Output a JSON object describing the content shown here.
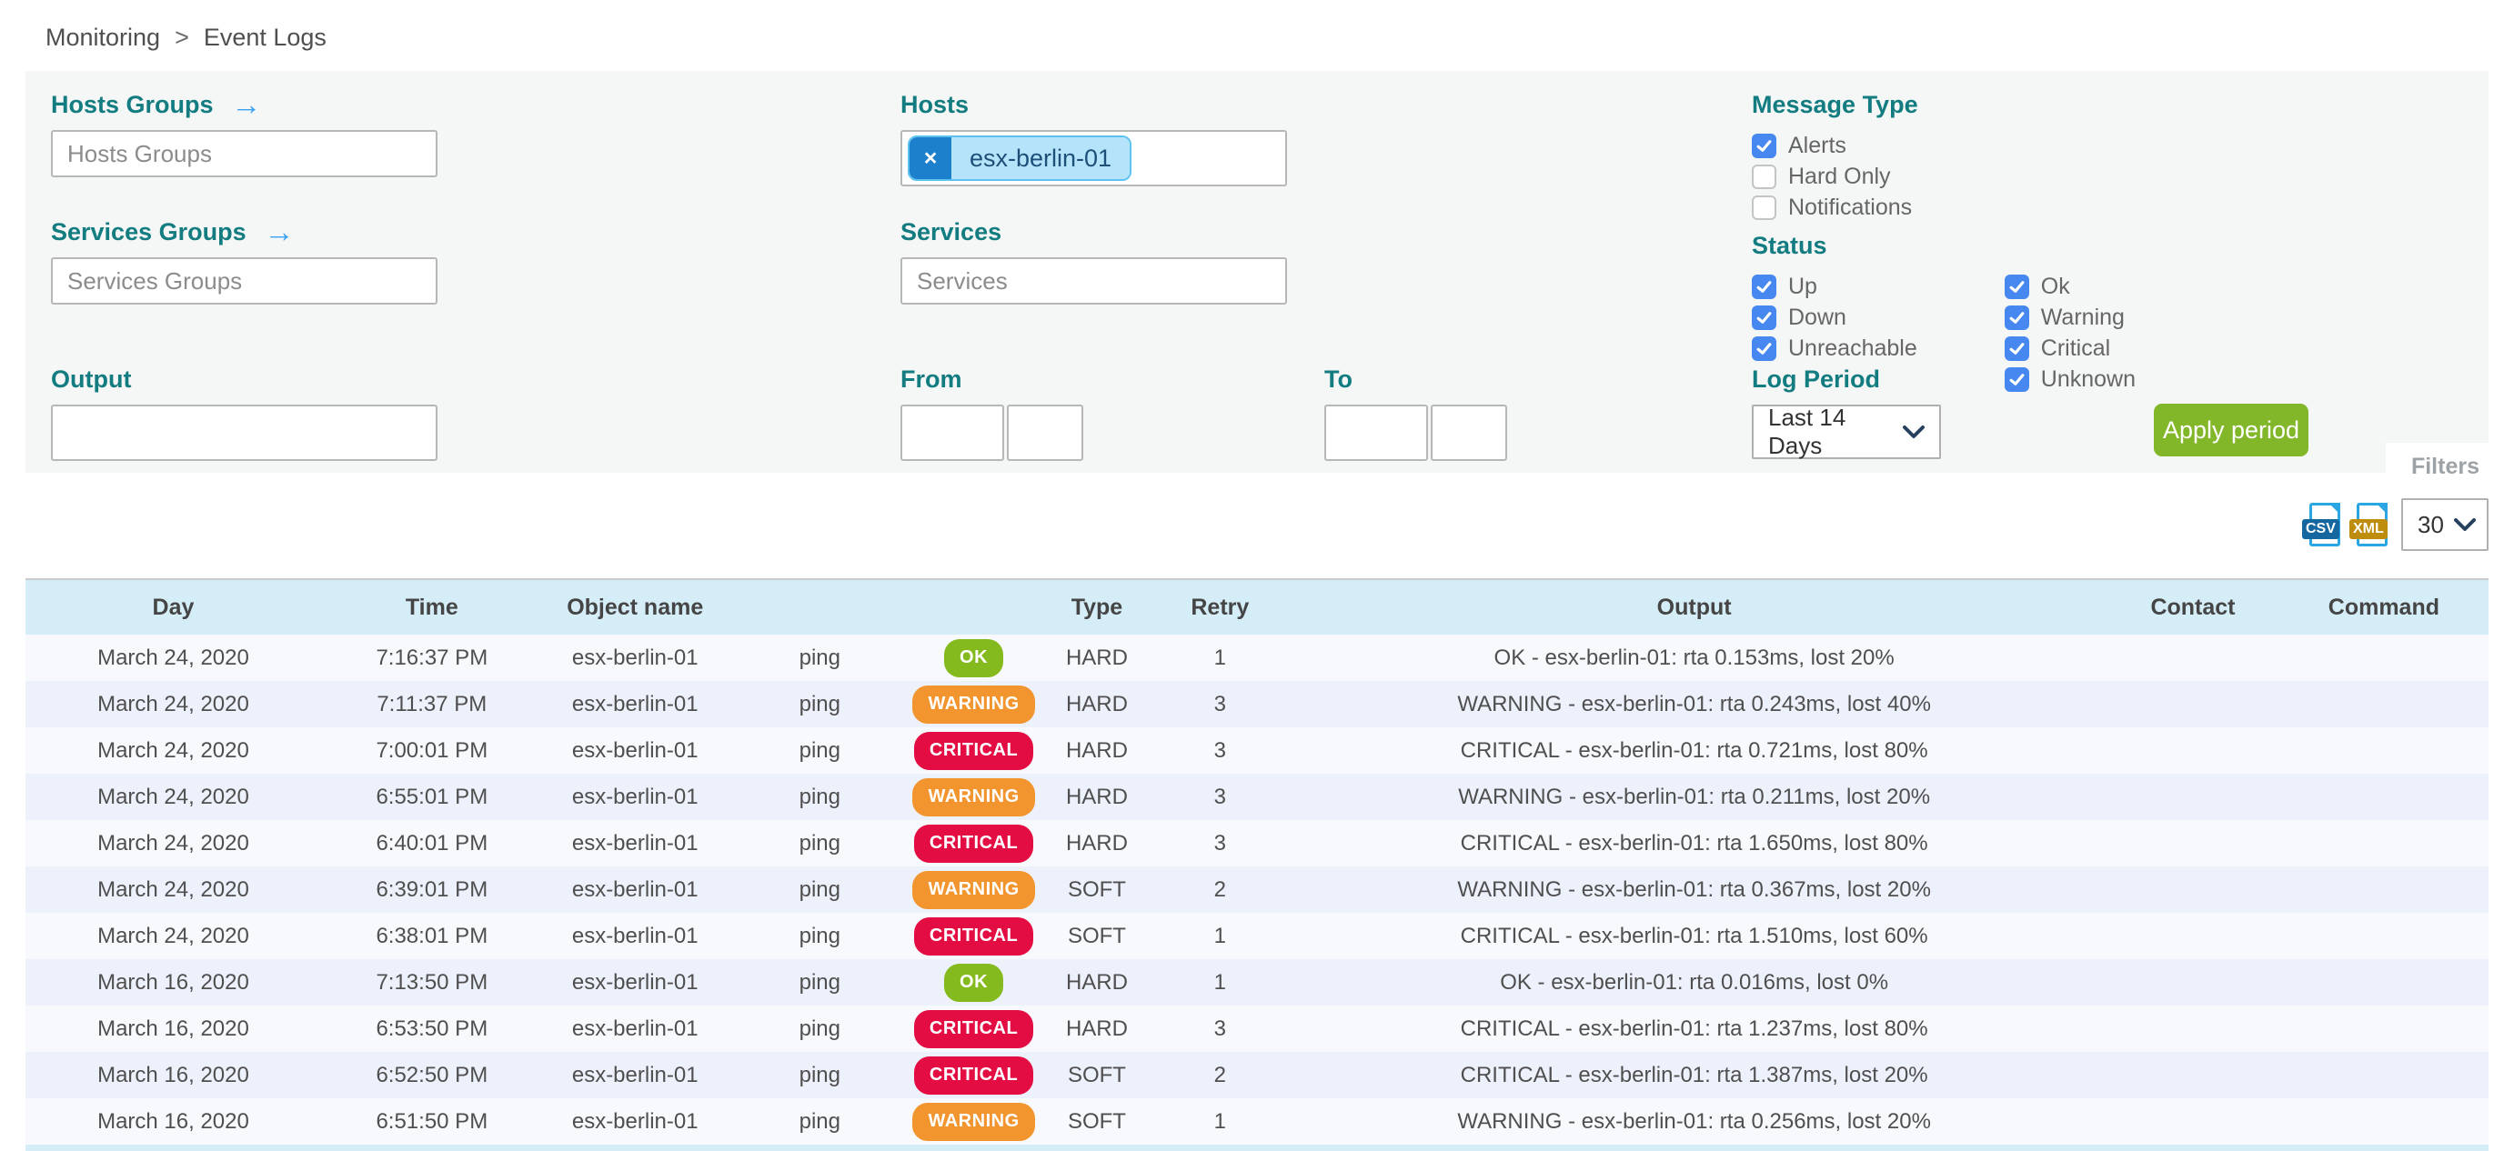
{
  "breadcrumb": {
    "section": "Monitoring",
    "separator": ">",
    "page": "Event Logs"
  },
  "filters": {
    "panel_tab_label": "Filters",
    "hosts_groups": {
      "label": "Hosts Groups",
      "placeholder": "Hosts Groups",
      "value": ""
    },
    "services_groups": {
      "label": "Services Groups",
      "placeholder": "Services Groups",
      "value": ""
    },
    "hosts": {
      "label": "Hosts",
      "chips": [
        "esx-berlin-01"
      ],
      "remove_symbol": "×"
    },
    "services": {
      "label": "Services",
      "placeholder": "Services",
      "value": ""
    },
    "output": {
      "label": "Output",
      "value": ""
    },
    "from": {
      "label": "From",
      "date_value": "",
      "time_value": ""
    },
    "to": {
      "label": "To",
      "date_value": "",
      "time_value": ""
    },
    "message_type": {
      "label": "Message Type",
      "options": [
        {
          "label": "Alerts",
          "checked": true
        },
        {
          "label": "Hard Only",
          "checked": false
        },
        {
          "label": "Notifications",
          "checked": false
        }
      ]
    },
    "status": {
      "label": "Status",
      "col1": [
        {
          "label": "Up",
          "checked": true
        },
        {
          "label": "Down",
          "checked": true
        },
        {
          "label": "Unreachable",
          "checked": true
        }
      ],
      "col2": [
        {
          "label": "Ok",
          "checked": true
        },
        {
          "label": "Warning",
          "checked": true
        },
        {
          "label": "Critical",
          "checked": true
        },
        {
          "label": "Unknown",
          "checked": true
        }
      ]
    },
    "log_period": {
      "label": "Log Period",
      "selected": "Last 14 Days"
    },
    "apply_button": "Apply period"
  },
  "toolbar": {
    "csv_label": "CSV",
    "xml_label": "XML",
    "page_size": "30"
  },
  "table": {
    "columns": [
      "Day",
      "Time",
      "Object name",
      "",
      "",
      "Type",
      "Retry",
      "Output",
      "Contact",
      "Command"
    ],
    "rows": [
      {
        "day": "March 24, 2020",
        "time": "7:16:37 PM",
        "object_name": "esx-berlin-01",
        "service": "ping",
        "status": "OK",
        "type": "HARD",
        "retry": "1",
        "output": "OK - esx-berlin-01: rta 0.153ms, lost 20%",
        "contact": "",
        "command": ""
      },
      {
        "day": "March 24, 2020",
        "time": "7:11:37 PM",
        "object_name": "esx-berlin-01",
        "service": "ping",
        "status": "WARNING",
        "type": "HARD",
        "retry": "3",
        "output": "WARNING - esx-berlin-01: rta 0.243ms, lost 40%",
        "contact": "",
        "command": ""
      },
      {
        "day": "March 24, 2020",
        "time": "7:00:01 PM",
        "object_name": "esx-berlin-01",
        "service": "ping",
        "status": "CRITICAL",
        "type": "HARD",
        "retry": "3",
        "output": "CRITICAL - esx-berlin-01: rta 0.721ms, lost 80%",
        "contact": "",
        "command": ""
      },
      {
        "day": "March 24, 2020",
        "time": "6:55:01 PM",
        "object_name": "esx-berlin-01",
        "service": "ping",
        "status": "WARNING",
        "type": "HARD",
        "retry": "3",
        "output": "WARNING - esx-berlin-01: rta 0.211ms, lost 20%",
        "contact": "",
        "command": ""
      },
      {
        "day": "March 24, 2020",
        "time": "6:40:01 PM",
        "object_name": "esx-berlin-01",
        "service": "ping",
        "status": "CRITICAL",
        "type": "HARD",
        "retry": "3",
        "output": "CRITICAL - esx-berlin-01: rta 1.650ms, lost 80%",
        "contact": "",
        "command": ""
      },
      {
        "day": "March 24, 2020",
        "time": "6:39:01 PM",
        "object_name": "esx-berlin-01",
        "service": "ping",
        "status": "WARNING",
        "type": "SOFT",
        "retry": "2",
        "output": "WARNING - esx-berlin-01: rta 0.367ms, lost 20%",
        "contact": "",
        "command": ""
      },
      {
        "day": "March 24, 2020",
        "time": "6:38:01 PM",
        "object_name": "esx-berlin-01",
        "service": "ping",
        "status": "CRITICAL",
        "type": "SOFT",
        "retry": "1",
        "output": "CRITICAL - esx-berlin-01: rta 1.510ms, lost 60%",
        "contact": "",
        "command": ""
      },
      {
        "day": "March 16, 2020",
        "time": "7:13:50 PM",
        "object_name": "esx-berlin-01",
        "service": "ping",
        "status": "OK",
        "type": "HARD",
        "retry": "1",
        "output": "OK - esx-berlin-01: rta 0.016ms, lost 0%",
        "contact": "",
        "command": ""
      },
      {
        "day": "March 16, 2020",
        "time": "6:53:50 PM",
        "object_name": "esx-berlin-01",
        "service": "ping",
        "status": "CRITICAL",
        "type": "HARD",
        "retry": "3",
        "output": "CRITICAL - esx-berlin-01: rta 1.237ms, lost 80%",
        "contact": "",
        "command": ""
      },
      {
        "day": "March 16, 2020",
        "time": "6:52:50 PM",
        "object_name": "esx-berlin-01",
        "service": "ping",
        "status": "CRITICAL",
        "type": "SOFT",
        "retry": "2",
        "output": "CRITICAL - esx-berlin-01: rta 1.387ms, lost 20%",
        "contact": "",
        "command": ""
      },
      {
        "day": "March 16, 2020",
        "time": "6:51:50 PM",
        "object_name": "esx-berlin-01",
        "service": "ping",
        "status": "WARNING",
        "type": "SOFT",
        "retry": "1",
        "output": "WARNING - esx-berlin-01: rta 0.256ms, lost 20%",
        "contact": "",
        "command": ""
      }
    ]
  },
  "colors": {
    "accent_teal": "#127c80",
    "checkbox_blue": "#4788f0",
    "apply_green": "#82b729",
    "chip_bg": "#b5e3fa",
    "chip_border": "#5ec2f1",
    "chip_remove_bg": "#1d80cc",
    "table_header_bg": "#d5edf7",
    "status": {
      "OK": "#85ba1e",
      "WARNING": "#f2952f",
      "CRITICAL": "#e30d43"
    }
  }
}
